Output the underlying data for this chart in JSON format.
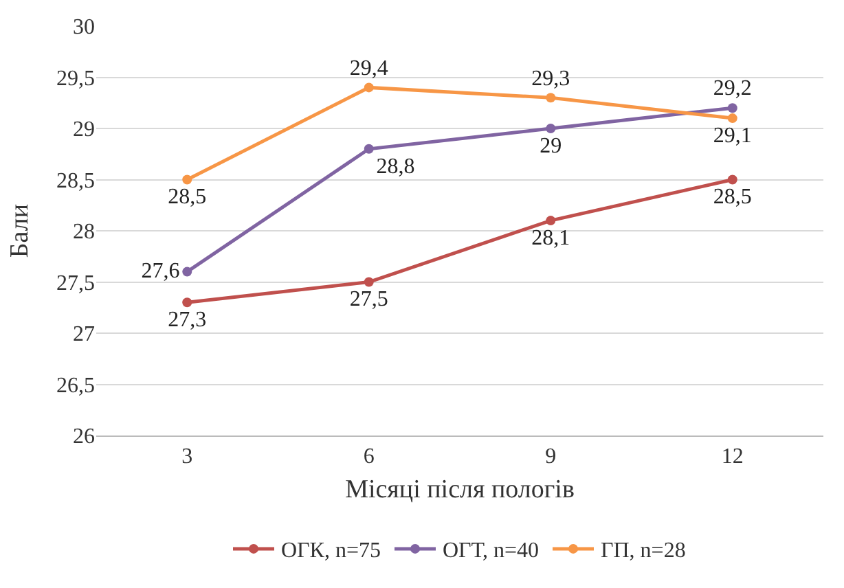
{
  "chart_data": {
    "type": "line",
    "xlabel": "Місяці після пологів",
    "ylabel": "Бали",
    "categories": [
      "3",
      "6",
      "9",
      "12"
    ],
    "series": [
      {
        "name": "ОГК, n=75",
        "color": "#c0504d",
        "values": [
          27.3,
          27.5,
          28.1,
          28.5
        ],
        "value_labels": [
          "27,3",
          "27,5",
          "28,1",
          "28,5"
        ]
      },
      {
        "name": "ОГТ, n=40",
        "color": "#8064a2",
        "values": [
          27.6,
          28.8,
          29,
          29.2
        ],
        "value_labels": [
          "27,6",
          "28,8",
          "29",
          "29,2"
        ]
      },
      {
        "name": "ГП, n=28",
        "color": "#f79646",
        "values": [
          28.5,
          29.4,
          29.3,
          29.1
        ],
        "value_labels": [
          "28,5",
          "29,4",
          "29,3",
          "29,1"
        ]
      }
    ],
    "ylim": [
      26,
      30
    ],
    "yticks": [
      26,
      {
        "value": 26.5,
        "label": "26,5"
      },
      27,
      {
        "value": 27.5,
        "label": "27,5"
      },
      28,
      {
        "value": 28.5,
        "label": "28,5"
      },
      29,
      {
        "value": 29.5,
        "label": "29,5"
      },
      30
    ],
    "grid": "y",
    "legend": "bottom",
    "marker": "circle",
    "line_style": "solid"
  }
}
